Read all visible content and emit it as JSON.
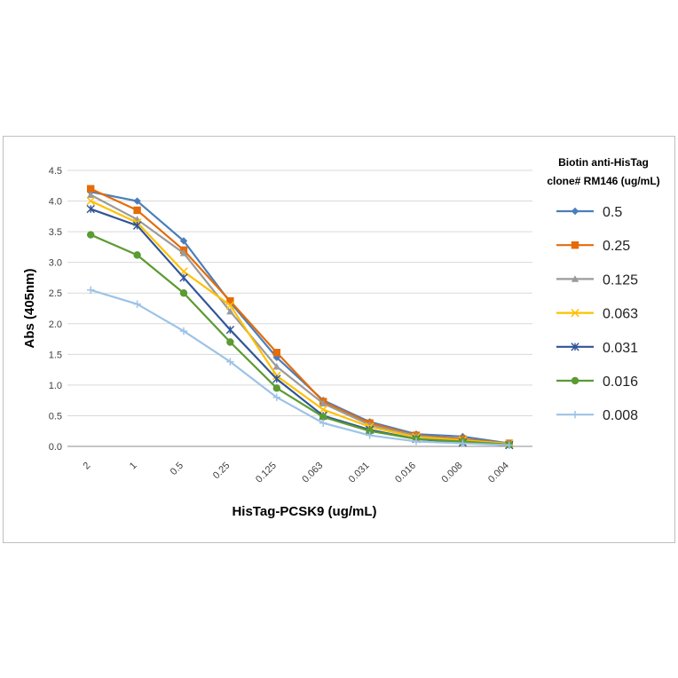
{
  "chart_data": {
    "type": "line",
    "xlabel": "HisTag-PCSK9 (ug/mL)",
    "ylabel": "Abs (405nm)",
    "categories": [
      "2",
      "1",
      "0.5",
      "0.25",
      "0.125",
      "0.063",
      "0.031",
      "0.016",
      "0.008",
      "0.004"
    ],
    "ylim": [
      0,
      4.5
    ],
    "yticks": [
      "0.0",
      "0.5",
      "1.0",
      "1.5",
      "2.0",
      "2.5",
      "3.0",
      "3.5",
      "4.0",
      "4.5"
    ],
    "grid": true,
    "legend": {
      "title_line1": "Biotin anti-HisTag",
      "title_line2": "clone# RM146 (ug/mL)",
      "placement": "right"
    },
    "series": [
      {
        "name": "0.5",
        "color": "#4a7ebb",
        "marker": "diamond",
        "values": [
          4.15,
          4.0,
          3.35,
          2.35,
          1.45,
          0.75,
          0.4,
          0.2,
          0.16,
          0.05
        ]
      },
      {
        "name": "0.25",
        "color": "#e46c0a",
        "marker": "square",
        "values": [
          4.2,
          3.85,
          3.2,
          2.37,
          1.53,
          0.73,
          0.38,
          0.18,
          0.12,
          0.05
        ]
      },
      {
        "name": "0.125",
        "color": "#9b9b9b",
        "marker": "triangle",
        "values": [
          4.1,
          3.7,
          3.15,
          2.2,
          1.3,
          0.7,
          0.35,
          0.17,
          0.1,
          0.05
        ]
      },
      {
        "name": "0.063",
        "color": "#ffc000",
        "marker": "x",
        "values": [
          4.0,
          3.65,
          2.85,
          2.3,
          1.15,
          0.6,
          0.32,
          0.15,
          0.1,
          0.04
        ]
      },
      {
        "name": "0.031",
        "color": "#2f5597",
        "marker": "star",
        "values": [
          3.87,
          3.6,
          2.75,
          1.9,
          1.1,
          0.5,
          0.27,
          0.12,
          0.06,
          0.02
        ]
      },
      {
        "name": "0.016",
        "color": "#5b9b32",
        "marker": "circle",
        "values": [
          3.45,
          3.12,
          2.5,
          1.7,
          0.95,
          0.48,
          0.25,
          0.12,
          0.08,
          0.03
        ]
      },
      {
        "name": "0.008",
        "color": "#9dc3e6",
        "marker": "plus",
        "values": [
          2.55,
          2.32,
          1.88,
          1.38,
          0.8,
          0.38,
          0.18,
          0.08,
          0.05,
          0.02
        ]
      }
    ]
  }
}
